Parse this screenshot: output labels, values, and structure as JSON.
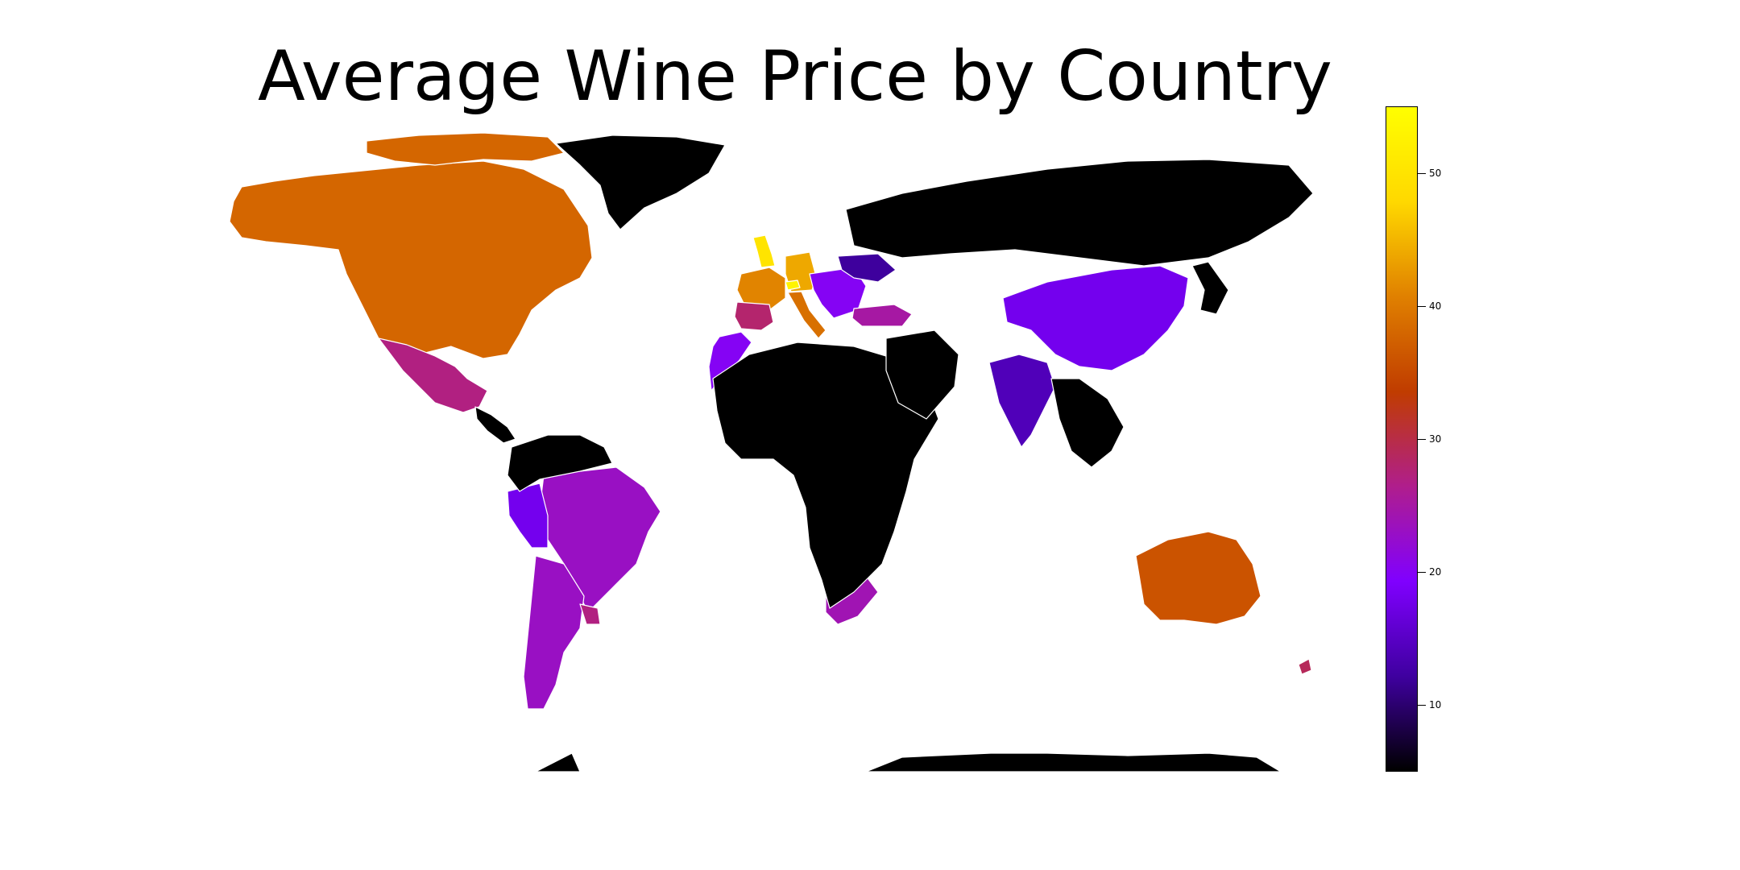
{
  "title": "Average Wine Price by Country",
  "colors": {
    "no_data": "#000000",
    "border": "#ffffff",
    "background": "#ffffff",
    "colormap": "gnuplot",
    "colormap_stops": [
      "#000000",
      "#3f00a0",
      "#8000ff",
      "#b01e8c",
      "#c03c00",
      "#e08000",
      "#ffd800",
      "#ffff00"
    ]
  },
  "chart_data": {
    "type": "choropleth",
    "title": "Average Wine Price by Country",
    "value_range": [
      5,
      55
    ],
    "colorbar": {
      "ticks": [
        10,
        20,
        30,
        40,
        50
      ],
      "orientation": "vertical",
      "position": "right"
    },
    "regions": [
      {
        "id": "north-america",
        "value": 38
      },
      {
        "id": "canada-islands",
        "value": 38
      },
      {
        "id": "greenland",
        "value": null
      },
      {
        "id": "mexico",
        "value": 27
      },
      {
        "id": "central-america",
        "value": null
      },
      {
        "id": "brazil",
        "value": 23
      },
      {
        "id": "peru",
        "value": 18
      },
      {
        "id": "chile-argentina",
        "value": 23
      },
      {
        "id": "uruguay",
        "value": 27
      },
      {
        "id": "south-america-north",
        "value": null
      },
      {
        "id": "uk",
        "value": 50
      },
      {
        "id": "france",
        "value": 41
      },
      {
        "id": "germany",
        "value": 44
      },
      {
        "id": "iberia",
        "value": 28
      },
      {
        "id": "italy",
        "value": 39
      },
      {
        "id": "switzerland",
        "value": 53
      },
      {
        "id": "balkans",
        "value": 20
      },
      {
        "id": "ukraine",
        "value": 12
      },
      {
        "id": "turkey",
        "value": 25
      },
      {
        "id": "morocco",
        "value": 20
      },
      {
        "id": "russia",
        "value": null
      },
      {
        "id": "china",
        "value": 18
      },
      {
        "id": "india",
        "value": 14
      },
      {
        "id": "south-africa",
        "value": 24
      },
      {
        "id": "australia",
        "value": 36
      },
      {
        "id": "new-zealand",
        "value": 29
      },
      {
        "id": "africa",
        "value": null
      },
      {
        "id": "middle-east",
        "value": null
      },
      {
        "id": "southeast-asia",
        "value": null
      },
      {
        "id": "japan",
        "value": null
      },
      {
        "id": "antarctica",
        "value": null
      }
    ]
  }
}
